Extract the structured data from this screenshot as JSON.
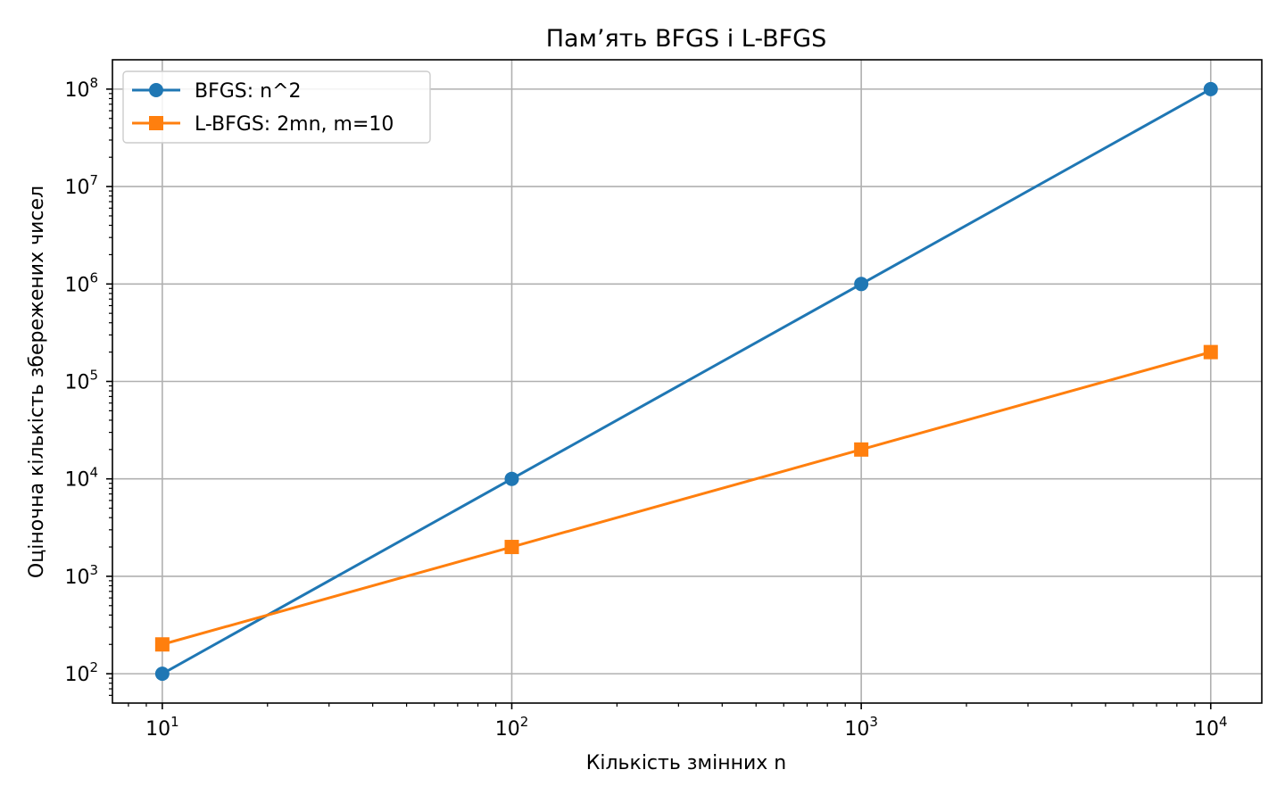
{
  "chart_data": {
    "type": "line",
    "title": "Пам’ять BFGS і L-BFGS",
    "xlabel": "Кількість змінних n",
    "ylabel": "Оціночна кількість збережених чисел",
    "x": [
      10,
      100,
      1000,
      10000
    ],
    "x_scale": "log",
    "y_scale": "log",
    "xlim": [
      7.2,
      14000
    ],
    "ylim": [
      50,
      200000000
    ],
    "x_ticks": [
      {
        "value": 10,
        "base": "10",
        "exp": "1"
      },
      {
        "value": 100,
        "base": "10",
        "exp": "2"
      },
      {
        "value": 1000,
        "base": "10",
        "exp": "3"
      },
      {
        "value": 10000,
        "base": "10",
        "exp": "4"
      }
    ],
    "y_ticks": [
      {
        "value": 100,
        "base": "10",
        "exp": "2"
      },
      {
        "value": 1000,
        "base": "10",
        "exp": "3"
      },
      {
        "value": 10000,
        "base": "10",
        "exp": "4"
      },
      {
        "value": 100000,
        "base": "10",
        "exp": "5"
      },
      {
        "value": 1000000,
        "base": "10",
        "exp": "6"
      },
      {
        "value": 10000000,
        "base": "10",
        "exp": "7"
      },
      {
        "value": 100000000,
        "base": "10",
        "exp": "8"
      }
    ],
    "grid": true,
    "legend_position": "top-left",
    "series": [
      {
        "name": "BFGS: n^2",
        "values": [
          100,
          10000,
          1000000,
          100000000
        ],
        "color": "#1f77b4",
        "marker": "circle"
      },
      {
        "name": "L-BFGS: 2mn, m=10",
        "values": [
          200,
          2000,
          20000,
          200000
        ],
        "color": "#ff7f0e",
        "marker": "square"
      }
    ]
  }
}
